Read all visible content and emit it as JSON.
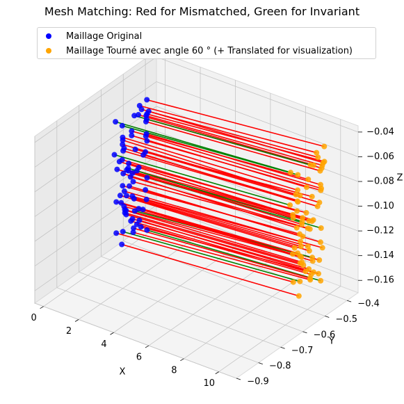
{
  "chart_data": {
    "type": "scatter",
    "projection": "3d",
    "title": "Mesh Matching: Red for Mismatched, Green for Invariant",
    "xlabel": "X",
    "ylabel": "Y",
    "zlabel": "Z",
    "xlim": [
      -0.5,
      11
    ],
    "ylim": [
      -0.9,
      -0.35
    ],
    "zlim": [
      -0.17,
      -0.035
    ],
    "x_ticks": [
      "0",
      "2",
      "4",
      "6",
      "8",
      "10"
    ],
    "y_ticks": [
      "−0.4",
      "−0.5",
      "−0.6",
      "−0.7",
      "−0.8",
      "−0.9"
    ],
    "z_ticks": [
      "−0.04",
      "−0.06",
      "−0.08",
      "−0.10",
      "−0.12",
      "−0.14",
      "−0.16"
    ],
    "grid": true,
    "legend_position": "top",
    "series": [
      {
        "name": "Maillage Original",
        "color": "#0000ff",
        "x": 0,
        "y_range": [
          -0.58,
          -0.42
        ],
        "z_range": [
          -0.165,
          -0.06
        ]
      },
      {
        "name": "Maillage Tourné avec angle 60 ° (+ Translated for visualization)",
        "color": "#ffa500",
        "x": 10,
        "y_range": [
          -0.58,
          -0.42
        ],
        "z_range": [
          -0.165,
          -0.04
        ]
      }
    ],
    "lines": [
      {
        "label": "Mismatched",
        "color": "#ff0000"
      },
      {
        "label": "Invariant",
        "color": "#008000"
      }
    ]
  }
}
